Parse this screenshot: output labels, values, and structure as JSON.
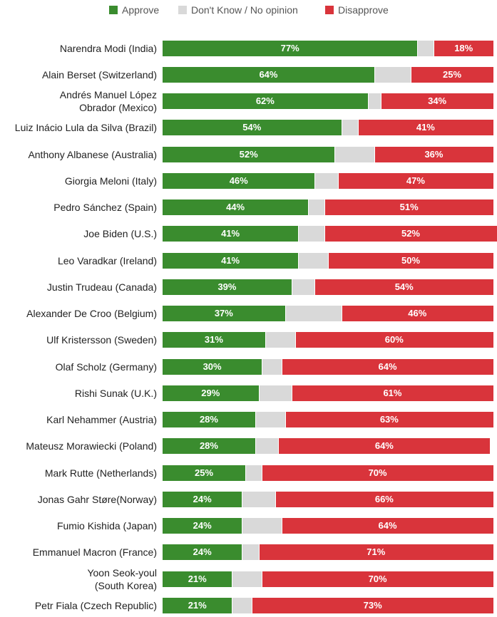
{
  "colors": {
    "approve": "#3a8c2e",
    "dont_know": "#d9d9d9",
    "disapprove": "#d9343b"
  },
  "legend": [
    {
      "key": "approve",
      "label": "Approve"
    },
    {
      "key": "dont_know",
      "label": "Don't Know / No opinion"
    },
    {
      "key": "disapprove",
      "label": "Disapprove"
    }
  ],
  "chart_data": {
    "type": "bar",
    "orientation": "horizontal",
    "stacked": true,
    "title": "",
    "xlabel": "",
    "ylabel": "",
    "xlim": [
      0,
      100
    ],
    "grid": false,
    "legend_position": "top",
    "categories": [
      "Narendra Modi (India)",
      "Alain Berset (Switzerland)",
      "Andrés Manuel López Obrador (Mexico)",
      "Luiz Inácio Lula da Silva (Brazil)",
      "Anthony Albanese (Australia)",
      "Giorgia Meloni (Italy)",
      "Pedro Sánchez (Spain)",
      "Joe Biden (U.S.)",
      "Leo Varadkar (Ireland)",
      "Justin Trudeau (Canada)",
      "Alexander De Croo (Belgium)",
      "Ulf Kristersson (Sweden)",
      "Olaf Scholz (Germany)",
      "Rishi Sunak (U.K.)",
      "Karl Nehammer (Austria)",
      "Mateusz Morawiecki (Poland)",
      "Mark Rutte (Netherlands)",
      "Jonas Gahr Støre(Norway)",
      "Fumio Kishida (Japan)",
      "Emmanuel Macron (France)",
      "Yoon Seok-youl (South Korea)",
      "Petr Fiala (Czech Republic)"
    ],
    "category_lines": [
      [
        "Narendra Modi (India)"
      ],
      [
        "Alain Berset (Switzerland)"
      ],
      [
        "Andrés Manuel López",
        "Obrador (Mexico)"
      ],
      [
        "Luiz Inácio Lula da Silva (Brazil)"
      ],
      [
        "Anthony Albanese (Australia)"
      ],
      [
        "Giorgia Meloni (Italy)"
      ],
      [
        "Pedro Sánchez (Spain)"
      ],
      [
        "Joe Biden (U.S.)"
      ],
      [
        "Leo Varadkar (Ireland)"
      ],
      [
        "Justin Trudeau (Canada)"
      ],
      [
        "Alexander De Croo (Belgium)"
      ],
      [
        "Ulf Kristersson (Sweden)"
      ],
      [
        "Olaf Scholz (Germany)"
      ],
      [
        "Rishi Sunak (U.K.)"
      ],
      [
        "Karl Nehammer (Austria)"
      ],
      [
        "Mateusz Morawiecki (Poland)"
      ],
      [
        "Mark Rutte (Netherlands)"
      ],
      [
        "Jonas Gahr Støre(Norway)"
      ],
      [
        "Fumio Kishida (Japan)"
      ],
      [
        "Emmanuel Macron (France)"
      ],
      [
        "Yoon Seok-youl",
        "(South Korea)"
      ],
      [
        "Petr Fiala (Czech Republic)"
      ]
    ],
    "series": [
      {
        "name": "Approve",
        "key": "approve",
        "values": [
          77,
          64,
          62,
          54,
          52,
          46,
          44,
          41,
          41,
          39,
          37,
          31,
          30,
          29,
          28,
          28,
          25,
          24,
          24,
          24,
          21,
          21
        ],
        "labels": [
          "77%",
          "64%",
          "62%",
          "54%",
          "52%",
          "46%",
          "44%",
          "41%",
          "41%",
          "39%",
          "37%",
          "31%",
          "30%",
          "29%",
          "28%",
          "28%",
          "25%",
          "24%",
          "24%",
          "24%",
          "21%",
          "21%"
        ]
      },
      {
        "name": "Don't Know / No opinion",
        "key": "dont_know",
        "values": [
          5,
          11,
          4,
          5,
          12,
          7,
          5,
          8,
          9,
          7,
          17,
          9,
          6,
          10,
          9,
          7,
          5,
          10,
          12,
          5,
          9,
          6
        ],
        "labels": null
      },
      {
        "name": "Disapprove",
        "key": "disapprove",
        "values": [
          18,
          25,
          34,
          41,
          36,
          47,
          51,
          52,
          50,
          54,
          46,
          60,
          64,
          61,
          63,
          64,
          70,
          66,
          64,
          71,
          70,
          73
        ],
        "labels": [
          "18%",
          "25%",
          "34%",
          "41%",
          "36%",
          "47%",
          "51%",
          "52%",
          "50%",
          "54%",
          "46%",
          "60%",
          "64%",
          "61%",
          "63%",
          "64%",
          "70%",
          "66%",
          "64%",
          "71%",
          "70%",
          "73%"
        ]
      }
    ]
  }
}
